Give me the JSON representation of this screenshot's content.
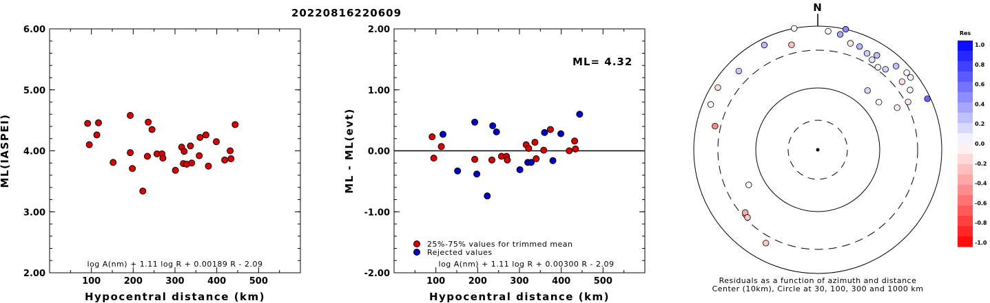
{
  "title": "20220816220609",
  "chart_data": [
    {
      "type": "scatter",
      "xlabel": "Hypocentral distance (km)",
      "ylabel": "ML(IASPEI)",
      "xlim": [
        0,
        600
      ],
      "ylim": [
        2.0,
        6.0
      ],
      "x_ticks": [
        "100",
        "200",
        "300",
        "400",
        "500"
      ],
      "y_ticks": [
        "2.00",
        "3.00",
        "4.00",
        "5.00",
        "6.00"
      ],
      "formula": "log A(nm) + 1.11 log R + 0.00189 R - 2.09",
      "series": [
        {
          "color": "#dd0000",
          "points": [
            [
              91,
              4.45
            ],
            [
              95,
              4.1
            ],
            [
              113,
              4.26
            ],
            [
              117,
              4.46
            ],
            [
              152,
              3.81
            ],
            [
              193,
              4.58
            ],
            [
              193,
              3.97
            ],
            [
              198,
              3.71
            ],
            [
              223,
              3.34
            ],
            [
              234,
              3.91
            ],
            [
              236,
              4.47
            ],
            [
              245,
              4.35
            ],
            [
              257,
              3.95
            ],
            [
              269,
              3.95
            ],
            [
              271,
              3.88
            ],
            [
              301,
              3.68
            ],
            [
              316,
              4.06
            ],
            [
              320,
              3.79
            ],
            [
              322,
              3.99
            ],
            [
              328,
              3.78
            ],
            [
              337,
              4.08
            ],
            [
              340,
              3.8
            ],
            [
              358,
              3.92
            ],
            [
              360,
              4.22
            ],
            [
              374,
              4.26
            ],
            [
              380,
              3.75
            ],
            [
              399,
              4.15
            ],
            [
              419,
              3.85
            ],
            [
              432,
              4.0
            ],
            [
              434,
              3.87
            ],
            [
              444,
              4.43
            ]
          ]
        }
      ]
    },
    {
      "type": "scatter",
      "xlabel": "Hypocentral distance (km)",
      "ylabel": "ML - ML(evt)",
      "xlim": [
        0,
        600
      ],
      "ylim": [
        -2.0,
        2.0
      ],
      "x_ticks": [
        "100",
        "200",
        "300",
        "400",
        "500"
      ],
      "y_ticks": [
        "-2.00",
        "-1.00",
        "0.00",
        "1.00",
        "2.00"
      ],
      "annotation": "ML= 4.32",
      "formula": "log A(nm) + 1.11 log R + 0.00300 R - 2.09",
      "legend": [
        "25%-75% values for trimmed mean",
        "Rejected values"
      ],
      "series": [
        {
          "name": "25%-75% values for trimmed mean",
          "color": "#dd0000",
          "points": [
            [
              91,
              0.23
            ],
            [
              95,
              -0.12
            ],
            [
              113,
              0.07
            ],
            [
              193,
              -0.14
            ],
            [
              234,
              -0.15
            ],
            [
              257,
              -0.09
            ],
            [
              269,
              -0.09
            ],
            [
              271,
              -0.15
            ],
            [
              316,
              0.1
            ],
            [
              322,
              0.04
            ],
            [
              337,
              0.14
            ],
            [
              340,
              -0.13
            ],
            [
              358,
              0.01
            ],
            [
              374,
              0.35
            ],
            [
              419,
              0.0
            ],
            [
              432,
              0.16
            ],
            [
              434,
              0.03
            ]
          ]
        },
        {
          "name": "Rejected values",
          "color": "#0000cc",
          "points": [
            [
              117,
              0.27
            ],
            [
              152,
              -0.33
            ],
            [
              193,
              0.47
            ],
            [
              198,
              -0.38
            ],
            [
              223,
              -0.74
            ],
            [
              236,
              0.41
            ],
            [
              245,
              0.31
            ],
            [
              301,
              -0.31
            ],
            [
              320,
              -0.19
            ],
            [
              328,
              -0.19
            ],
            [
              360,
              0.3
            ],
            [
              380,
              -0.16
            ],
            [
              399,
              0.28
            ],
            [
              444,
              0.6
            ]
          ]
        }
      ]
    },
    {
      "type": "scatter",
      "subtype": "polar",
      "north_label": "N",
      "caption_line1": "Residuals as a function of azimuth and distance",
      "caption_line2": "Center (10km), Circle at 30, 100, 300 and 1000 km",
      "colorbar_title": "Res",
      "colorbar_ticks": [
        "1.0",
        "0.8",
        "0.6",
        "0.4",
        "0.2",
        "0.0",
        "-0.2",
        "-0.4",
        "-0.6",
        "-0.8",
        "-1.0"
      ],
      "points": [
        {
          "r": 380,
          "az": -27,
          "res": 0.27
        },
        {
          "r": 400,
          "az": -11,
          "res": -0.05
        },
        {
          "r": 385,
          "az": 5,
          "res": 0.0
        },
        {
          "r": 400,
          "az": 13,
          "res": 0.47
        },
        {
          "r": 380,
          "az": 11,
          "res": 0.35
        },
        {
          "r": 360,
          "az": 17,
          "res": -0.09
        },
        {
          "r": 360,
          "az": 22,
          "res": 0.29
        },
        {
          "r": 350,
          "az": 27,
          "res": 0.2
        },
        {
          "r": 340,
          "az": 31,
          "res": 0.1
        },
        {
          "r": 360,
          "az": 32,
          "res": 0.26
        },
        {
          "r": 330,
          "az": 36,
          "res": 0.06
        },
        {
          "r": 340,
          "az": 40,
          "res": 0.18
        },
        {
          "r": 370,
          "az": 43,
          "res": 0.25
        },
        {
          "r": 380,
          "az": 49,
          "res": 0.02
        },
        {
          "r": 350,
          "az": 51,
          "res": -0.12
        },
        {
          "r": 380,
          "az": 52,
          "res": 0.05
        },
        {
          "r": 355,
          "az": 57,
          "res": 0.01
        },
        {
          "r": 330,
          "az": 62,
          "res": -0.09
        },
        {
          "r": 390,
          "az": 65,
          "res": 0.6
        },
        {
          "r": 250,
          "az": 40,
          "res": 0.16
        },
        {
          "r": 250,
          "az": 52,
          "res": 0.0
        },
        {
          "r": 290,
          "az": 62,
          "res": -0.05
        },
        {
          "r": 350,
          "az": -14,
          "res": -0.25
        },
        {
          "r": 360,
          "az": -45,
          "res": 0.21
        },
        {
          "r": 380,
          "az": -58,
          "res": -0.14
        },
        {
          "r": 375,
          "az": -67,
          "res": 0.0
        },
        {
          "r": 340,
          "az": -77,
          "res": -0.45
        },
        {
          "r": 250,
          "az": -117,
          "res": 0.01
        },
        {
          "r": 310,
          "az": -131,
          "res": -0.33
        },
        {
          "r": 315,
          "az": -134,
          "res": -0.22
        },
        {
          "r": 345,
          "az": -151,
          "res": -0.22
        }
      ]
    }
  ],
  "colors": {
    "red_marker": "#dd0000",
    "blue_marker": "#0000cc",
    "colorbar_top": "#0000ff",
    "colorbar_bottom": "#ff0000"
  }
}
